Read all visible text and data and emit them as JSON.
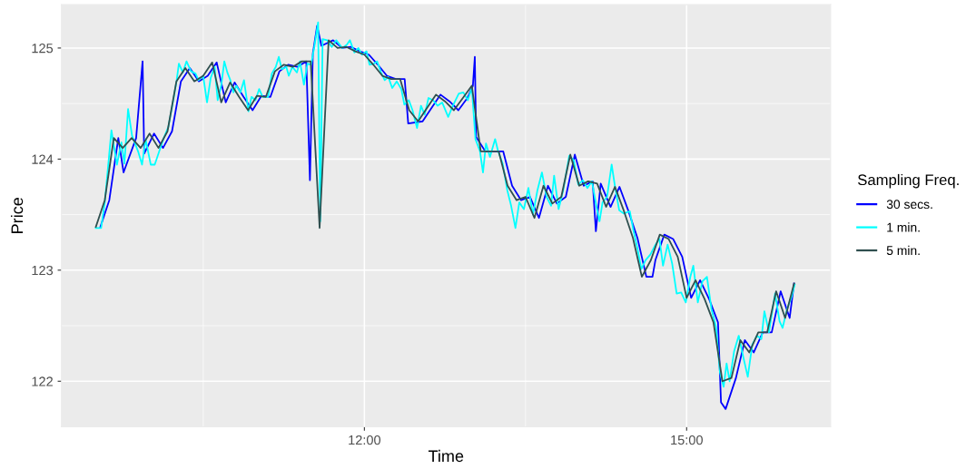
{
  "chart_data": {
    "type": "line",
    "xlabel": "Time",
    "ylabel": "Price",
    "legend_title": "Sampling Freq.",
    "legend": "right",
    "grid": true,
    "xlim": [
      9.18,
      16.34
    ],
    "xticks": [
      {
        "value": 12,
        "label": "12:00"
      },
      {
        "value": 15,
        "label": "15:00"
      }
    ],
    "ylim": [
      121.59,
      125.39
    ],
    "yticks": [
      122,
      123,
      124,
      125
    ],
    "series": [
      {
        "name": "30 secs.",
        "color": "#0000ff",
        "x": [
          9.542,
          9.625,
          9.709,
          9.758,
          9.875,
          9.935,
          9.95,
          10.042,
          10.125,
          10.209,
          10.292,
          10.375,
          10.459,
          10.542,
          10.625,
          10.709,
          10.792,
          10.875,
          10.959,
          11.042,
          11.125,
          11.209,
          11.292,
          11.375,
          11.459,
          11.493,
          11.52,
          11.56,
          11.6,
          11.709,
          11.792,
          11.875,
          11.959,
          12.042,
          12.125,
          12.209,
          12.292,
          12.375,
          12.408,
          12.542,
          12.625,
          12.709,
          12.792,
          12.875,
          12.959,
          13.01,
          13.028,
          13.04,
          13.125,
          13.209,
          13.292,
          13.375,
          13.459,
          13.542,
          13.625,
          13.709,
          13.792,
          13.875,
          13.959,
          14.042,
          14.125,
          14.155,
          14.2,
          14.292,
          14.375,
          14.459,
          14.542,
          14.625,
          14.682,
          14.709,
          14.792,
          14.875,
          14.959,
          15.042,
          15.125,
          15.209,
          15.292,
          15.32,
          15.363,
          15.459,
          15.542,
          15.625,
          15.709,
          15.792,
          15.875,
          15.959,
          16.0
        ],
        "values": [
          123.39,
          123.63,
          124.19,
          123.88,
          124.19,
          124.88,
          124.05,
          124.23,
          124.1,
          124.25,
          124.7,
          124.82,
          124.7,
          124.75,
          124.87,
          124.51,
          124.69,
          124.56,
          124.44,
          124.57,
          124.56,
          124.79,
          124.85,
          124.83,
          124.88,
          123.81,
          124.95,
          125.2,
          125.02,
          125.07,
          125.0,
          125.01,
          124.97,
          124.94,
          124.85,
          124.75,
          124.72,
          124.72,
          124.32,
          124.34,
          124.46,
          124.58,
          124.52,
          124.44,
          124.55,
          124.66,
          124.92,
          124.2,
          124.07,
          124.07,
          124.07,
          123.76,
          123.63,
          123.66,
          123.47,
          123.76,
          123.6,
          123.66,
          124.04,
          123.76,
          123.8,
          123.35,
          123.78,
          123.57,
          123.75,
          123.53,
          123.29,
          122.94,
          122.94,
          123.09,
          123.32,
          123.28,
          123.12,
          122.75,
          122.91,
          122.74,
          122.53,
          121.81,
          121.75,
          122.03,
          122.37,
          122.26,
          122.44,
          122.44,
          122.81,
          122.57,
          122.88
        ]
      },
      {
        "name": "1 min.",
        "color": "#00ffff",
        "x": [
          9.499,
          9.549,
          9.583,
          9.645,
          9.696,
          9.738,
          9.766,
          9.8,
          9.837,
          9.893,
          9.93,
          9.963,
          10.011,
          10.048,
          10.09,
          10.132,
          10.175,
          10.217,
          10.251,
          10.273,
          10.31,
          10.344,
          10.386,
          10.428,
          10.456,
          10.499,
          10.535,
          10.569,
          10.606,
          10.634,
          10.668,
          10.696,
          10.724,
          10.752,
          10.78,
          10.808,
          10.845,
          10.879,
          10.921,
          10.949,
          10.986,
          11.02,
          11.053,
          11.104,
          11.138,
          11.175,
          11.203,
          11.231,
          11.273,
          11.296,
          11.329,
          11.372,
          11.4,
          11.437,
          11.47,
          11.504,
          11.532,
          11.569,
          11.589,
          11.611,
          11.653,
          11.696,
          11.738,
          11.794,
          11.837,
          11.865,
          11.907,
          11.944,
          11.977,
          12.02,
          12.048,
          12.09,
          12.118,
          12.155,
          12.189,
          12.222,
          12.259,
          12.301,
          12.344,
          12.372,
          12.414,
          12.448,
          12.49,
          12.527,
          12.561,
          12.597,
          12.639,
          12.682,
          12.724,
          12.78,
          12.823,
          12.879,
          12.921,
          12.963,
          13.0,
          13.034,
          13.076,
          13.104,
          13.132,
          13.169,
          13.217,
          13.245,
          13.287,
          13.33,
          13.366,
          13.406,
          13.442,
          13.485,
          13.527,
          13.569,
          13.611,
          13.653,
          13.696,
          13.738,
          13.766,
          13.808,
          13.851,
          13.907,
          13.949,
          13.991,
          14.034,
          14.076,
          14.118,
          14.161,
          14.189,
          14.217,
          14.259,
          14.302,
          14.335,
          14.372,
          14.414,
          14.471,
          14.504,
          14.541,
          14.578,
          14.617,
          14.662,
          14.71,
          14.747,
          14.78,
          14.823,
          14.865,
          14.907,
          14.949,
          14.992,
          15.034,
          15.062,
          15.104,
          15.147,
          15.189,
          15.231,
          15.273,
          15.31,
          15.344,
          15.372,
          15.4,
          15.442,
          15.485,
          15.527,
          15.569,
          15.611,
          15.654,
          15.696,
          15.724,
          15.766,
          15.823,
          15.865,
          15.893,
          15.935,
          15.977,
          16.006
        ],
        "values": [
          123.38,
          123.38,
          123.61,
          124.26,
          123.95,
          124.15,
          123.96,
          124.45,
          124.21,
          124.07,
          123.95,
          124.18,
          123.95,
          123.95,
          124.07,
          124.19,
          124.29,
          124.51,
          124.7,
          124.86,
          124.78,
          124.88,
          124.79,
          124.77,
          124.71,
          124.75,
          124.51,
          124.73,
          124.83,
          124.53,
          124.67,
          124.88,
          124.78,
          124.71,
          124.6,
          124.66,
          124.6,
          124.71,
          124.43,
          124.56,
          124.53,
          124.63,
          124.56,
          124.56,
          124.77,
          124.83,
          124.92,
          124.81,
          124.83,
          124.75,
          124.83,
          124.78,
          124.88,
          124.67,
          124.86,
          124.85,
          125.0,
          125.23,
          123.44,
          125.08,
          125.07,
          125.01,
          125.07,
          125.0,
          125.03,
          125.07,
          124.96,
          125.0,
          124.94,
          124.97,
          124.85,
          124.86,
          124.88,
          124.78,
          124.71,
          124.74,
          124.64,
          124.7,
          124.63,
          124.49,
          124.53,
          124.44,
          124.28,
          124.48,
          124.4,
          124.55,
          124.53,
          124.48,
          124.51,
          124.38,
          124.48,
          124.59,
          124.6,
          124.53,
          124.64,
          124.18,
          124.07,
          123.88,
          124.14,
          124.02,
          124.18,
          124.07,
          123.96,
          123.72,
          123.58,
          123.38,
          123.61,
          123.55,
          123.74,
          123.5,
          123.72,
          123.88,
          123.66,
          123.58,
          123.85,
          123.55,
          123.72,
          124.03,
          123.99,
          123.77,
          123.81,
          123.74,
          123.8,
          123.57,
          123.44,
          123.61,
          123.66,
          123.95,
          123.74,
          123.54,
          123.51,
          123.53,
          123.36,
          123.2,
          123.01,
          123.09,
          123.14,
          123.23,
          123.28,
          123.04,
          123.23,
          123.06,
          122.79,
          122.8,
          122.71,
          122.94,
          123.04,
          122.71,
          122.9,
          122.94,
          122.65,
          122.49,
          122.08,
          121.95,
          122.16,
          122.0,
          122.27,
          122.41,
          122.22,
          122.04,
          122.33,
          122.41,
          122.38,
          122.63,
          122.44,
          122.79,
          122.54,
          122.48,
          122.65,
          122.76,
          122.87
        ]
      },
      {
        "name": "5 min.",
        "color": "#2f4f4f",
        "x": [
          9.5,
          9.583,
          9.667,
          9.75,
          9.833,
          9.917,
          10.0,
          10.083,
          10.167,
          10.25,
          10.333,
          10.417,
          10.5,
          10.583,
          10.667,
          10.75,
          10.833,
          10.917,
          11.0,
          11.083,
          11.167,
          11.25,
          11.333,
          11.417,
          11.5,
          11.583,
          11.667,
          11.75,
          11.833,
          11.917,
          12.0,
          12.083,
          12.167,
          12.25,
          12.333,
          12.417,
          12.5,
          12.583,
          12.667,
          12.75,
          12.833,
          12.917,
          13.0,
          13.083,
          13.167,
          13.25,
          13.333,
          13.417,
          13.5,
          13.583,
          13.667,
          13.75,
          13.833,
          13.917,
          14.0,
          14.083,
          14.167,
          14.25,
          14.333,
          14.417,
          14.5,
          14.583,
          14.667,
          14.75,
          14.833,
          14.917,
          15.0,
          15.083,
          15.167,
          15.25,
          15.333,
          15.417,
          15.5,
          15.583,
          15.667,
          15.75,
          15.833,
          15.917,
          16.0
        ],
        "values": [
          123.39,
          123.63,
          124.19,
          124.1,
          124.19,
          124.1,
          124.23,
          124.1,
          124.25,
          124.7,
          124.82,
          124.7,
          124.75,
          124.87,
          124.51,
          124.69,
          124.56,
          124.44,
          124.57,
          124.56,
          124.79,
          124.85,
          124.83,
          124.88,
          124.88,
          123.38,
          125.07,
          125.0,
          125.01,
          124.97,
          124.94,
          124.85,
          124.75,
          124.72,
          124.72,
          124.44,
          124.34,
          124.46,
          124.58,
          124.52,
          124.44,
          124.55,
          124.66,
          124.07,
          124.07,
          124.07,
          123.76,
          123.63,
          123.66,
          123.47,
          123.76,
          123.6,
          123.66,
          124.04,
          123.76,
          123.8,
          123.78,
          123.57,
          123.75,
          123.53,
          123.29,
          122.94,
          123.09,
          123.32,
          123.28,
          123.12,
          122.75,
          122.91,
          122.74,
          122.53,
          122.0,
          122.03,
          122.37,
          122.26,
          122.44,
          122.44,
          122.81,
          122.57,
          122.88
        ]
      }
    ]
  }
}
